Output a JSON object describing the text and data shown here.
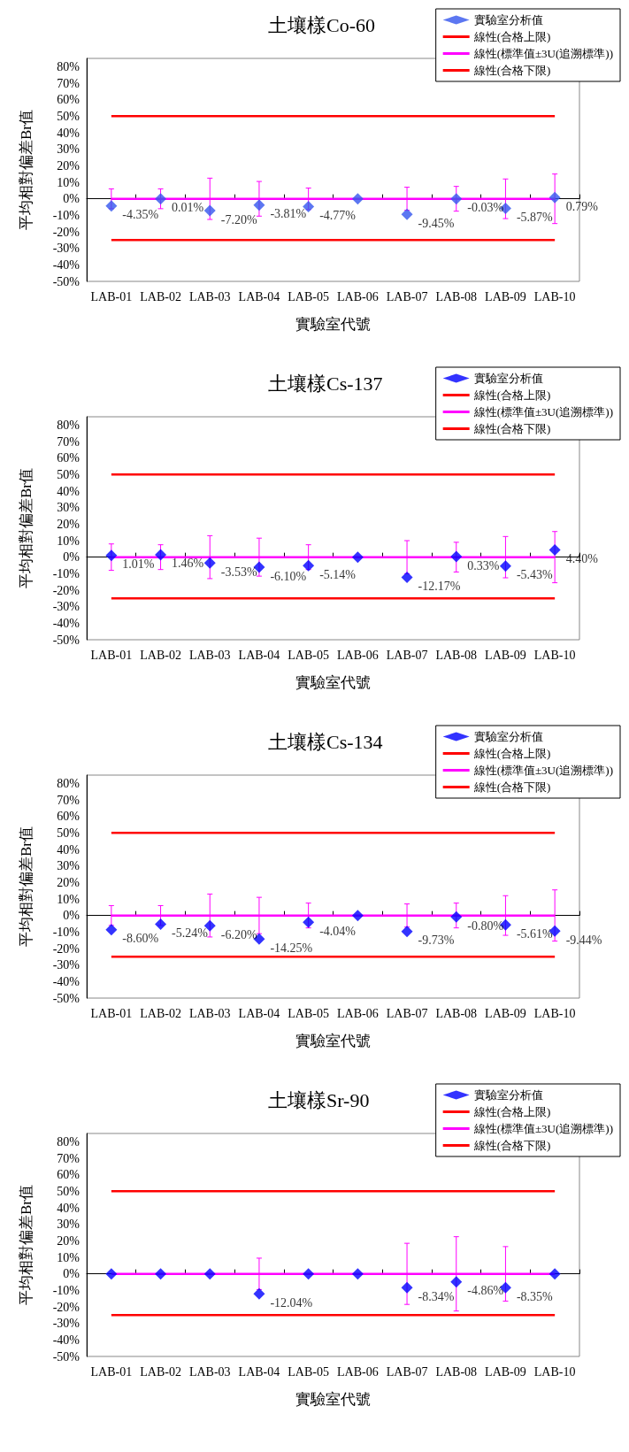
{
  "chart_data": [
    {
      "type": "scatter",
      "title": "土壤樣Co-60",
      "xlabel": "實驗室代號",
      "ylabel": "平均相對偏差Br值",
      "legend": "top right",
      "categories": [
        "LAB-01",
        "LAB-02",
        "LAB-03",
        "LAB-04",
        "LAB-05",
        "LAB-06",
        "LAB-07",
        "LAB-08",
        "LAB-09",
        "LAB-10"
      ],
      "ylim": [
        -50,
        85
      ],
      "yticks": [
        {
          "value": -50,
          "label": "-50%"
        },
        {
          "value": -40,
          "label": "-40%"
        },
        {
          "value": -30,
          "label": "-30%"
        },
        {
          "value": -20,
          "label": "-20%"
        },
        {
          "value": -10,
          "label": "-10%"
        },
        {
          "value": 0,
          "label": "0%"
        },
        {
          "value": 10,
          "label": "10%"
        },
        {
          "value": 20,
          "label": "20%"
        },
        {
          "value": 30,
          "label": "30%"
        },
        {
          "value": 40,
          "label": "40%"
        },
        {
          "value": 50,
          "label": "50%"
        },
        {
          "value": 60,
          "label": "60%"
        },
        {
          "value": 70,
          "label": "70%"
        },
        {
          "value": 80,
          "label": "80%"
        }
      ],
      "series": [
        {
          "name": "實驗室分析值",
          "marker": "diamond",
          "color": "#3355ee",
          "values": [
            -4.35,
            0.01,
            -7.2,
            -3.81,
            -4.77,
            0,
            -9.45,
            -0.03,
            -5.87,
            0.79
          ],
          "value_labels": [
            "-4.35%",
            "0.01%",
            "-7.20%",
            "-3.81%",
            "-4.77%",
            null,
            "-9.45%",
            "-0.03%",
            "-5.87%",
            "0.79%"
          ]
        },
        {
          "name": "線性(合格上限)",
          "type": "line",
          "color": "#ff0000",
          "values": [
            50,
            50,
            50,
            50,
            50,
            50,
            50,
            50,
            50,
            50
          ]
        },
        {
          "name": "線性(標準值±3U(追溯標準))",
          "type": "line",
          "color": "#ff00ff",
          "values": [
            0,
            0,
            0,
            0,
            0,
            0,
            0,
            0,
            0,
            0
          ],
          "errors": [
            6,
            6,
            12.5,
            10.5,
            6.5,
            null,
            7,
            7.5,
            12,
            15
          ]
        },
        {
          "name": "線性(合格下限)",
          "type": "line",
          "color": "#ff0000",
          "values": [
            -25,
            -25,
            -25,
            -25,
            -25,
            -25,
            -25,
            -25,
            -25,
            -25
          ]
        }
      ]
    },
    {
      "type": "scatter",
      "title": "土壤樣Cs-137",
      "xlabel": "實驗室代號",
      "ylabel": "平均相對偏差Br值",
      "legend": "top right",
      "categories": [
        "LAB-01",
        "LAB-02",
        "LAB-03",
        "LAB-04",
        "LAB-05",
        "LAB-06",
        "LAB-07",
        "LAB-08",
        "LAB-09",
        "LAB-10"
      ],
      "ylim": [
        -50,
        85
      ],
      "yticks": [
        {
          "value": -50,
          "label": "-50%"
        },
        {
          "value": -40,
          "label": "-40%"
        },
        {
          "value": -30,
          "label": "-30%"
        },
        {
          "value": -20,
          "label": "-20%"
        },
        {
          "value": -10,
          "label": "-10%"
        },
        {
          "value": 0,
          "label": "0%"
        },
        {
          "value": 10,
          "label": "10%"
        },
        {
          "value": 20,
          "label": "20%"
        },
        {
          "value": 30,
          "label": "30%"
        },
        {
          "value": 40,
          "label": "40%"
        },
        {
          "value": 50,
          "label": "50%"
        },
        {
          "value": 60,
          "label": "60%"
        },
        {
          "value": 70,
          "label": "70%"
        },
        {
          "value": 80,
          "label": "80%"
        }
      ],
      "series": [
        {
          "name": "實驗室分析值",
          "marker": "diamond",
          "color": "#0000ff",
          "values": [
            1.01,
            1.46,
            -3.53,
            -6.1,
            -5.14,
            0,
            -12.17,
            0.33,
            -5.43,
            4.4
          ],
          "value_labels": [
            "1.01%",
            "1.46%",
            "-3.53%",
            "-6.10%",
            "-5.14%",
            null,
            "-12.17%",
            "0.33%",
            "-5.43%",
            "4.40%"
          ]
        },
        {
          "name": "線性(合格上限)",
          "type": "line",
          "color": "#ff0000",
          "values": [
            50,
            50,
            50,
            50,
            50,
            50,
            50,
            50,
            50,
            50
          ]
        },
        {
          "name": "線性(標準值±3U(追溯標準))",
          "type": "line",
          "color": "#ff00ff",
          "values": [
            0,
            0,
            0,
            0,
            0,
            0,
            0,
            0,
            0,
            0
          ],
          "errors": [
            8,
            7.5,
            13,
            11.5,
            7.5,
            null,
            10,
            9,
            12.5,
            15.5
          ]
        },
        {
          "name": "線性(合格下限)",
          "type": "line",
          "color": "#ff0000",
          "values": [
            -25,
            -25,
            -25,
            -25,
            -25,
            -25,
            -25,
            -25,
            -25,
            -25
          ]
        }
      ]
    },
    {
      "type": "scatter",
      "title": "土壤樣Cs-134",
      "xlabel": "實驗室代號",
      "ylabel": "平均相對偏差Br值",
      "legend": "top right",
      "categories": [
        "LAB-01",
        "LAB-02",
        "LAB-03",
        "LAB-04",
        "LAB-05",
        "LAB-06",
        "LAB-07",
        "LAB-08",
        "LAB-09",
        "LAB-10"
      ],
      "ylim": [
        -50,
        85
      ],
      "yticks": [
        {
          "value": -50,
          "label": "-50%"
        },
        {
          "value": -40,
          "label": "-40%"
        },
        {
          "value": -30,
          "label": "-30%"
        },
        {
          "value": -20,
          "label": "-20%"
        },
        {
          "value": -10,
          "label": "-10%"
        },
        {
          "value": 0,
          "label": "0%"
        },
        {
          "value": 10,
          "label": "10%"
        },
        {
          "value": 20,
          "label": "20%"
        },
        {
          "value": 30,
          "label": "30%"
        },
        {
          "value": 40,
          "label": "40%"
        },
        {
          "value": 50,
          "label": "50%"
        },
        {
          "value": 60,
          "label": "60%"
        },
        {
          "value": 70,
          "label": "70%"
        },
        {
          "value": 80,
          "label": "80%"
        }
      ],
      "series": [
        {
          "name": "實驗室分析值",
          "marker": "diamond",
          "color": "#0000ff",
          "values": [
            -8.6,
            -5.24,
            -6.2,
            -14.25,
            -4.04,
            0,
            -9.73,
            -0.8,
            -5.61,
            -9.44
          ],
          "value_labels": [
            "-8.60%",
            "-5.24%",
            "-6.20%",
            "-14.25%",
            "-4.04%",
            null,
            "-9.73%",
            "-0.80%",
            "-5.61%",
            "-9.44%"
          ]
        },
        {
          "name": "線性(合格上限)",
          "type": "line",
          "color": "#ff0000",
          "values": [
            50,
            50,
            50,
            50,
            50,
            50,
            50,
            50,
            50,
            50
          ]
        },
        {
          "name": "線性(標準值±3U(追溯標準))",
          "type": "line",
          "color": "#ff00ff",
          "values": [
            0,
            0,
            0,
            0,
            0,
            0,
            0,
            0,
            0,
            0
          ],
          "errors": [
            6,
            6,
            13,
            11,
            7.5,
            null,
            7,
            7.5,
            12,
            15.5
          ]
        },
        {
          "name": "線性(合格下限)",
          "type": "line",
          "color": "#ff0000",
          "values": [
            -25,
            -25,
            -25,
            -25,
            -25,
            -25,
            -25,
            -25,
            -25,
            -25
          ]
        }
      ]
    },
    {
      "type": "scatter",
      "title": "土壤樣Sr-90",
      "xlabel": "實驗室代號",
      "ylabel": "平均相對偏差Br值",
      "legend": "top right",
      "categories": [
        "LAB-01",
        "LAB-02",
        "LAB-03",
        "LAB-04",
        "LAB-05",
        "LAB-06",
        "LAB-07",
        "LAB-08",
        "LAB-09",
        "LAB-10"
      ],
      "ylim": [
        -50,
        85
      ],
      "yticks": [
        {
          "value": -50,
          "label": "-50%"
        },
        {
          "value": -40,
          "label": "-40%"
        },
        {
          "value": -30,
          "label": "-30%"
        },
        {
          "value": -20,
          "label": "-20%"
        },
        {
          "value": -10,
          "label": "-10%"
        },
        {
          "value": 0,
          "label": "0%"
        },
        {
          "value": 10,
          "label": "10%"
        },
        {
          "value": 20,
          "label": "20%"
        },
        {
          "value": 30,
          "label": "30%"
        },
        {
          "value": 40,
          "label": "40%"
        },
        {
          "value": 50,
          "label": "50%"
        },
        {
          "value": 60,
          "label": "60%"
        },
        {
          "value": 70,
          "label": "70%"
        },
        {
          "value": 80,
          "label": "80%"
        }
      ],
      "series": [
        {
          "name": "實驗室分析值",
          "marker": "diamond",
          "color": "#0000ff",
          "values": [
            0,
            0,
            0,
            -12.04,
            0,
            0,
            -8.34,
            -4.86,
            -8.35,
            0
          ],
          "value_labels": [
            null,
            null,
            null,
            "-12.04%",
            null,
            null,
            "-8.34%",
            "-4.86%",
            "-8.35%",
            null
          ]
        },
        {
          "name": "線性(合格上限)",
          "type": "line",
          "color": "#ff0000",
          "values": [
            50,
            50,
            50,
            50,
            50,
            50,
            50,
            50,
            50,
            50
          ]
        },
        {
          "name": "線性(標準值±3U(追溯標準))",
          "type": "line",
          "color": "#ff00ff",
          "values": [
            0,
            0,
            0,
            0,
            0,
            0,
            0,
            0,
            0,
            0
          ],
          "errors": [
            null,
            null,
            null,
            9.5,
            null,
            null,
            18.5,
            22.5,
            16.5,
            null
          ]
        },
        {
          "name": "線性(合格下限)",
          "type": "line",
          "color": "#ff0000",
          "values": [
            -25,
            -25,
            -25,
            -25,
            -25,
            -25,
            -25,
            -25,
            -25,
            -25
          ]
        }
      ]
    }
  ]
}
